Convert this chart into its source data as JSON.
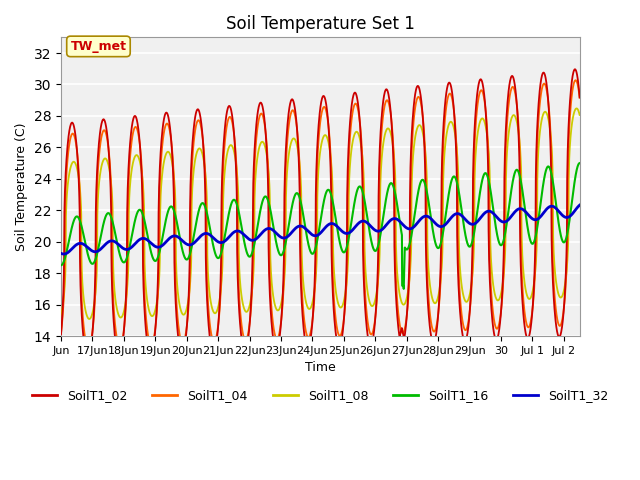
{
  "title": "Soil Temperature Set 1",
  "xlabel": "Time",
  "ylabel": "Soil Temperature (C)",
  "ylim": [
    14,
    33
  ],
  "xlim_start": 0,
  "xlim_end": 16.5,
  "annotation": "TW_met",
  "bg_color": "#f0f0f0",
  "series_colors": {
    "SoilT1_02": "#cc0000",
    "SoilT1_04": "#ff6600",
    "SoilT1_08": "#cccc00",
    "SoilT1_16": "#00bb00",
    "SoilT1_32": "#0000cc"
  },
  "tick_labels": [
    "Jun",
    "17Jun",
    "18Jun",
    "19Jun",
    "20Jun",
    "21Jun",
    "22Jun",
    "23Jun",
    "24Jun",
    "25Jun",
    "26Jun",
    "27Jun",
    "28Jun",
    "29Jun",
    "30",
    "Jul 1",
    "Jul 2"
  ],
  "tick_positions": [
    0,
    1,
    2,
    3,
    4,
    5,
    6,
    7,
    8,
    9,
    10,
    11,
    12,
    13,
    14,
    15,
    16
  ],
  "yticks": [
    14,
    16,
    18,
    20,
    22,
    24,
    26,
    28,
    30,
    32
  ],
  "legend_entries": [
    "SoilT1_02",
    "SoilT1_04",
    "SoilT1_08",
    "SoilT1_16",
    "SoilT1_32"
  ]
}
